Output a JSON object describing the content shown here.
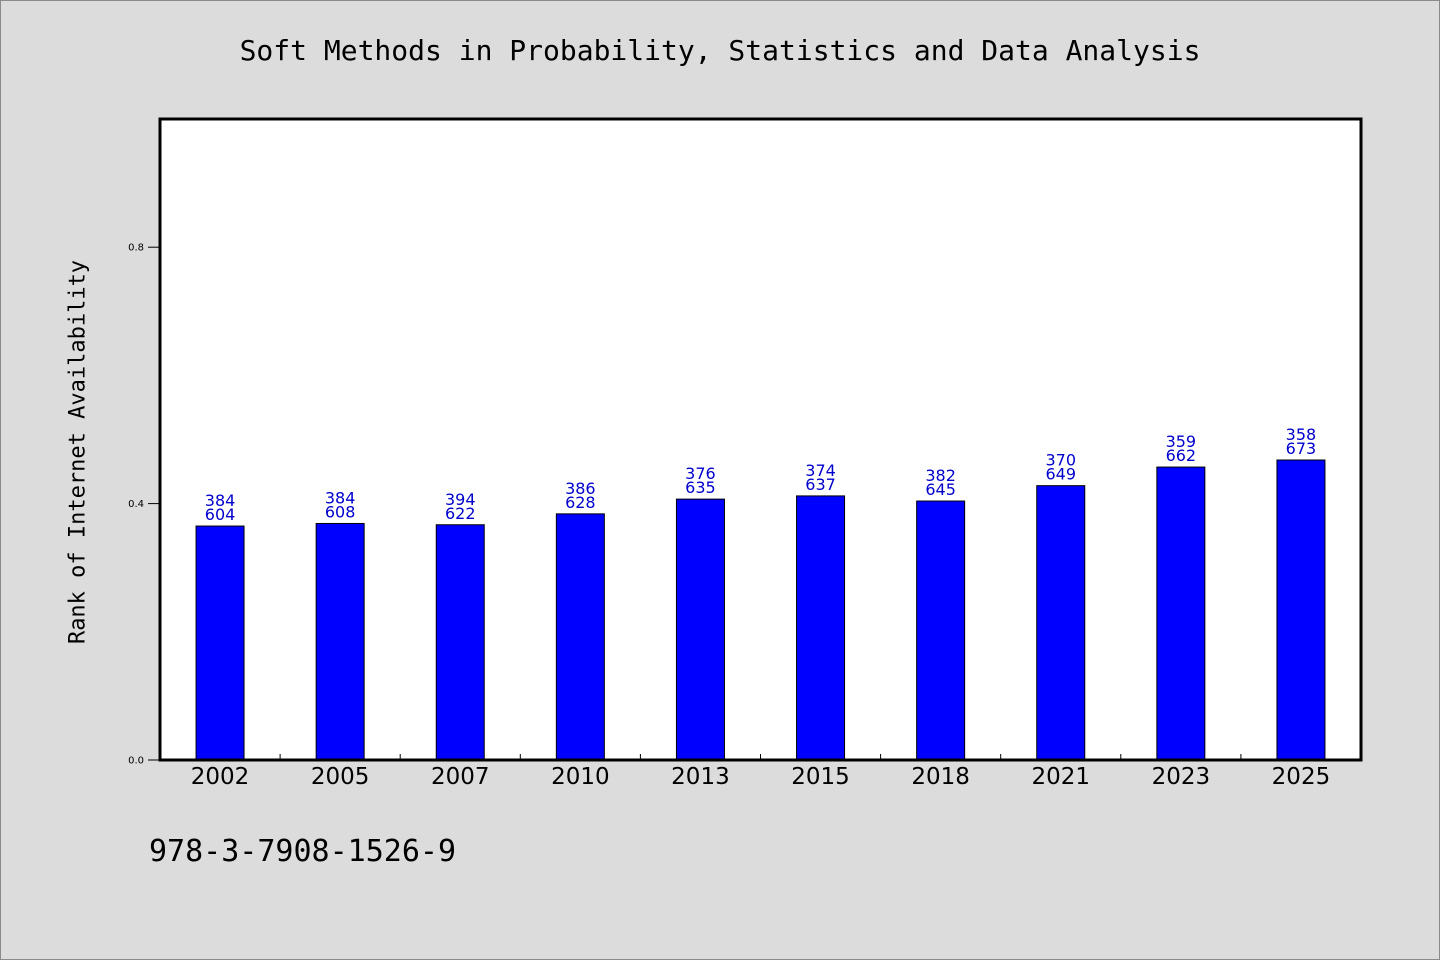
{
  "title": "Soft Methods in Probability, Statistics and Data Analysis",
  "footer_text": "978-3-7908-1526-9",
  "colors": {
    "bar": "#0000ff",
    "label": "#0000cc",
    "background": "#dcdcdc",
    "plot": "#ffffff"
  },
  "chart_data": {
    "type": "bar",
    "title": "Soft Methods in Probability, Statistics and Data Analysis",
    "xlabel": "",
    "ylabel": "Rank of Internet Availability",
    "ylim": [
      0,
      1.0
    ],
    "yticks": [
      0.0,
      0.4,
      0.8
    ],
    "ytick_labels": [
      "0.0",
      "0.4",
      "0.8"
    ],
    "grid": false,
    "categories": [
      "2002",
      "2005",
      "2007",
      "2010",
      "2013",
      "2015",
      "2018",
      "2021",
      "2023",
      "2025"
    ],
    "values": [
      0.365,
      0.369,
      0.367,
      0.384,
      0.407,
      0.412,
      0.404,
      0.428,
      0.457,
      0.468
    ],
    "data_labels": [
      [
        "384",
        "604"
      ],
      [
        "384",
        "608"
      ],
      [
        "394",
        "622"
      ],
      [
        "386",
        "628"
      ],
      [
        "376",
        "635"
      ],
      [
        "374",
        "637"
      ],
      [
        "382",
        "645"
      ],
      [
        "370",
        "649"
      ],
      [
        "359",
        "662"
      ],
      [
        "358",
        "673"
      ]
    ]
  }
}
